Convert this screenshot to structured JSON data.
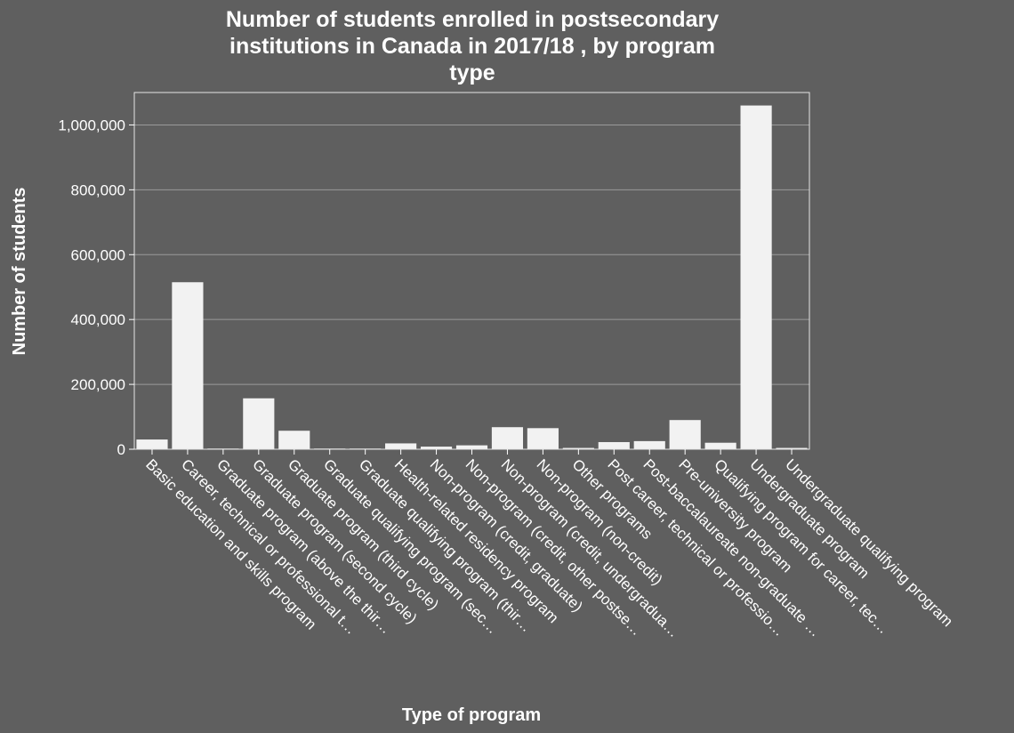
{
  "chart_data": {
    "type": "bar",
    "title_lines": [
      "Number of students enrolled in postsecondary",
      "institutions in Canada in 2017/18 , by program",
      "type"
    ],
    "xlabel": "Type of program",
    "ylabel": "Number of students",
    "ylim": [
      0,
      1100000
    ],
    "yticks": [
      0,
      200000,
      400000,
      600000,
      800000,
      1000000
    ],
    "ytick_labels": [
      "0",
      "200,000",
      "400,000",
      "600,000",
      "800,000",
      "1,000,000"
    ],
    "grid": true,
    "categories": [
      "Basic education and skills program",
      "Career, technical or professional t…",
      "Graduate program (above the thir…",
      "Graduate program (second cycle)",
      "Graduate program (third cycle)",
      "Graduate qualifying program (sec…",
      "Graduate qualifying program (thir…",
      "Health-related residency program",
      "Non-program (credit, graduate)",
      "Non-program (credit, other postse…",
      "Non-program (credit, undergradua…",
      "Non-program (non-credit)",
      "Other programs",
      "Post career, technical or professio…",
      "Post-baccalaureate non-graduate …",
      "Pre-university program",
      "Qualifying program for career, tec…",
      "Undergraduate program",
      "Undergraduate qualifying program"
    ],
    "values": [
      30000,
      515000,
      2000,
      157000,
      57000,
      2000,
      2000,
      18000,
      8000,
      12000,
      68000,
      65000,
      4000,
      22000,
      25000,
      90000,
      20000,
      1060000,
      4000
    ],
    "colors": {
      "background": "#5f5f5f",
      "bar": "#f2f2f2",
      "grid": "#9a9a9a",
      "text": "#ffffff"
    }
  }
}
